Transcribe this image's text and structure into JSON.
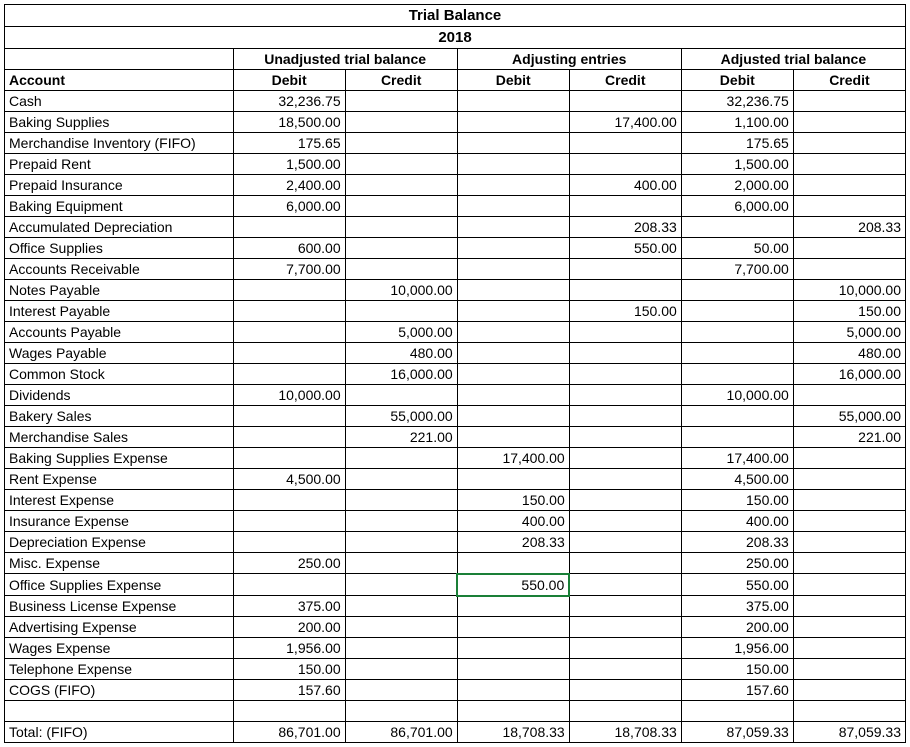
{
  "title": "Trial Balance",
  "year": "2018",
  "section_headers": [
    "Unadjusted trial balance",
    "Adjusting entries",
    "Adjusted trial balance"
  ],
  "column_labels": {
    "account": "Account",
    "debit": "Debit",
    "credit": "Credit"
  },
  "rows": [
    {
      "account": "Cash",
      "u_d": "32,236.75",
      "u_c": "",
      "a_d": "",
      "a_c": "",
      "ad_d": "32,236.75",
      "ad_c": ""
    },
    {
      "account": "Baking Supplies",
      "u_d": "18,500.00",
      "u_c": "",
      "a_d": "",
      "a_c": "17,400.00",
      "ad_d": "1,100.00",
      "ad_c": ""
    },
    {
      "account": "Merchandise Inventory (FIFO)",
      "u_d": "175.65",
      "u_c": "",
      "a_d": "",
      "a_c": "",
      "ad_d": "175.65",
      "ad_c": ""
    },
    {
      "account": "Prepaid Rent",
      "u_d": "1,500.00",
      "u_c": "",
      "a_d": "",
      "a_c": "",
      "ad_d": "1,500.00",
      "ad_c": ""
    },
    {
      "account": "Prepaid Insurance",
      "u_d": "2,400.00",
      "u_c": "",
      "a_d": "",
      "a_c": "400.00",
      "ad_d": "2,000.00",
      "ad_c": ""
    },
    {
      "account": "Baking Equipment",
      "u_d": "6,000.00",
      "u_c": "",
      "a_d": "",
      "a_c": "",
      "ad_d": "6,000.00",
      "ad_c": ""
    },
    {
      "account": "Accumulated Depreciation",
      "u_d": "",
      "u_c": "",
      "a_d": "",
      "a_c": "208.33",
      "ad_d": "",
      "ad_c": "208.33"
    },
    {
      "account": "Office Supplies",
      "u_d": "600.00",
      "u_c": "",
      "a_d": "",
      "a_c": "550.00",
      "ad_d": "50.00",
      "ad_c": ""
    },
    {
      "account": "Accounts Receivable",
      "u_d": "7,700.00",
      "u_c": "",
      "a_d": "",
      "a_c": "",
      "ad_d": "7,700.00",
      "ad_c": ""
    },
    {
      "account": "Notes Payable",
      "u_d": "",
      "u_c": "10,000.00",
      "a_d": "",
      "a_c": "",
      "ad_d": "",
      "ad_c": "10,000.00"
    },
    {
      "account": "Interest Payable",
      "u_d": "",
      "u_c": "",
      "a_d": "",
      "a_c": "150.00",
      "ad_d": "",
      "ad_c": "150.00"
    },
    {
      "account": "Accounts Payable",
      "u_d": "",
      "u_c": "5,000.00",
      "a_d": "",
      "a_c": "",
      "ad_d": "",
      "ad_c": "5,000.00"
    },
    {
      "account": "Wages Payable",
      "u_d": "",
      "u_c": "480.00",
      "a_d": "",
      "a_c": "",
      "ad_d": "",
      "ad_c": "480.00"
    },
    {
      "account": "Common Stock",
      "u_d": "",
      "u_c": "16,000.00",
      "a_d": "",
      "a_c": "",
      "ad_d": "",
      "ad_c": "16,000.00"
    },
    {
      "account": "Dividends",
      "u_d": "10,000.00",
      "u_c": "",
      "a_d": "",
      "a_c": "",
      "ad_d": "10,000.00",
      "ad_c": ""
    },
    {
      "account": "Bakery Sales",
      "u_d": "",
      "u_c": "55,000.00",
      "a_d": "",
      "a_c": "",
      "ad_d": "",
      "ad_c": "55,000.00"
    },
    {
      "account": "Merchandise Sales",
      "u_d": "",
      "u_c": "221.00",
      "a_d": "",
      "a_c": "",
      "ad_d": "",
      "ad_c": "221.00"
    },
    {
      "account": "Baking Supplies Expense",
      "u_d": "",
      "u_c": "",
      "a_d": "17,400.00",
      "a_c": "",
      "ad_d": "17,400.00",
      "ad_c": ""
    },
    {
      "account": "Rent Expense",
      "u_d": "4,500.00",
      "u_c": "",
      "a_d": "",
      "a_c": "",
      "ad_d": "4,500.00",
      "ad_c": ""
    },
    {
      "account": "Interest Expense",
      "u_d": "",
      "u_c": "",
      "a_d": "150.00",
      "a_c": "",
      "ad_d": "150.00",
      "ad_c": ""
    },
    {
      "account": "Insurance Expense",
      "u_d": "",
      "u_c": "",
      "a_d": "400.00",
      "a_c": "",
      "ad_d": "400.00",
      "ad_c": ""
    },
    {
      "account": "Depreciation Expense",
      "u_d": "",
      "u_c": "",
      "a_d": "208.33",
      "a_c": "",
      "ad_d": "208.33",
      "ad_c": ""
    },
    {
      "account": "Misc. Expense",
      "u_d": "250.00",
      "u_c": "",
      "a_d": "",
      "a_c": "",
      "ad_d": "250.00",
      "ad_c": ""
    },
    {
      "account": "Office Supplies Expense",
      "u_d": "",
      "u_c": "",
      "a_d": "550.00",
      "a_c": "",
      "ad_d": "550.00",
      "ad_c": "",
      "selected": "a_d"
    },
    {
      "account": "Business License Expense",
      "u_d": "375.00",
      "u_c": "",
      "a_d": "",
      "a_c": "",
      "ad_d": "375.00",
      "ad_c": ""
    },
    {
      "account": "Advertising Expense",
      "u_d": "200.00",
      "u_c": "",
      "a_d": "",
      "a_c": "",
      "ad_d": "200.00",
      "ad_c": ""
    },
    {
      "account": "Wages Expense",
      "u_d": "1,956.00",
      "u_c": "",
      "a_d": "",
      "a_c": "",
      "ad_d": "1,956.00",
      "ad_c": ""
    },
    {
      "account": "Telephone Expense",
      "u_d": "150.00",
      "u_c": "",
      "a_d": "",
      "a_c": "",
      "ad_d": "150.00",
      "ad_c": ""
    },
    {
      "account": "COGS (FIFO)",
      "u_d": "157.60",
      "u_c": "",
      "a_d": "",
      "a_c": "",
      "ad_d": "157.60",
      "ad_c": ""
    }
  ],
  "totals": {
    "label": "Total: (FIFO)",
    "u_d": "86,701.00",
    "u_c": "86,701.00",
    "a_d": "18,708.33",
    "a_c": "18,708.33",
    "ad_d": "87,059.33",
    "ad_c": "87,059.33"
  },
  "colors": {
    "border": "#000000",
    "selection": "#1a7f37",
    "background": "#ffffff",
    "text": "#000000"
  },
  "font": {
    "family": "Arial",
    "size_pt": 11,
    "header_bold": true
  }
}
